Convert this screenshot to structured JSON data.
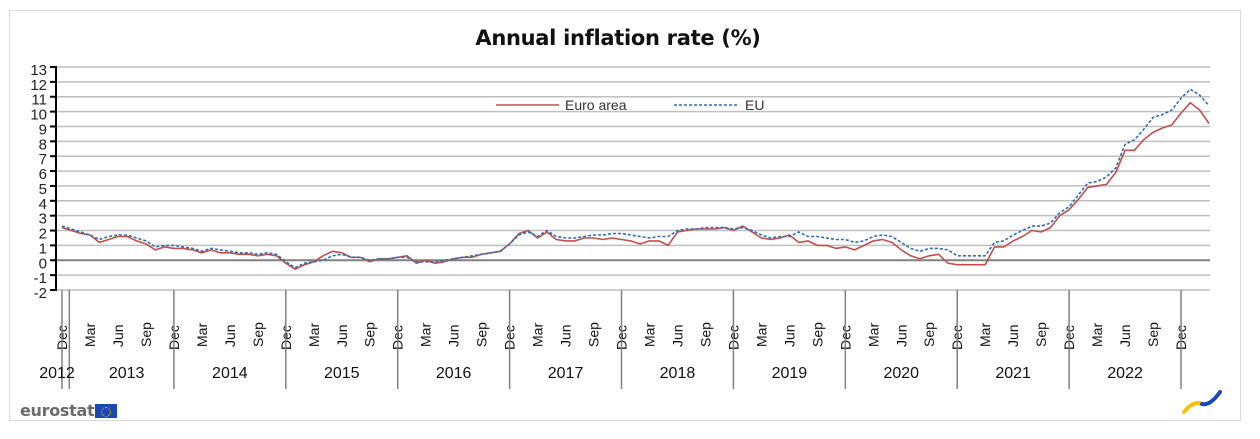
{
  "chart_data": {
    "type": "line",
    "title": "Annual inflation rate (%)",
    "xlabel": "",
    "ylabel": "",
    "ylim": [
      -2,
      13
    ],
    "yticks": [
      "-2",
      "-1",
      "0",
      "1",
      "2",
      "3",
      "4",
      "5",
      "6",
      "7",
      "8",
      "9",
      "10",
      "11",
      "12",
      "13"
    ],
    "grid": true,
    "legend": {
      "placement": "top-center",
      "entries": [
        {
          "name": "Euro area",
          "style": "solid",
          "color": "#c0504d"
        },
        {
          "name": "EU",
          "style": "dashed",
          "color": "#2e6db4"
        }
      ]
    },
    "x_start": "Dec 2012",
    "x_end": "Dec 2022",
    "x_month_ticks": [
      "Dec",
      "Mar",
      "Jun",
      "Sep",
      "Dec",
      "Mar",
      "Jun",
      "Sep",
      "Dec",
      "Mar",
      "Jun",
      "Sep",
      "Dec",
      "Mar",
      "Jun",
      "Sep",
      "Dec",
      "Mar",
      "Jun",
      "Sep",
      "Dec",
      "Mar",
      "Jun",
      "Sep",
      "Dec",
      "Mar",
      "Jun",
      "Sep",
      "Dec",
      "Mar",
      "Jun",
      "Sep",
      "Dec",
      "Mar",
      "Jun",
      "Sep",
      "Dec",
      "Mar",
      "Jun",
      "Sep",
      "Dec"
    ],
    "x_year_labels": [
      "2012",
      "2013",
      "2014",
      "2015",
      "2016",
      "2017",
      "2018",
      "2019",
      "2020",
      "2021",
      "2022"
    ],
    "series": [
      {
        "name": "Euro area",
        "values": [
          2.2,
          2.0,
          1.8,
          1.7,
          1.2,
          1.4,
          1.6,
          1.6,
          1.3,
          1.1,
          0.7,
          0.9,
          0.8,
          0.8,
          0.7,
          0.5,
          0.7,
          0.5,
          0.5,
          0.4,
          0.4,
          0.3,
          0.4,
          0.3,
          -0.2,
          -0.6,
          -0.3,
          -0.1,
          0.3,
          0.6,
          0.5,
          0.2,
          0.2,
          -0.1,
          0.1,
          0.1,
          0.2,
          0.3,
          -0.2,
          0.0,
          -0.2,
          -0.1,
          0.1,
          0.2,
          0.2,
          0.4,
          0.5,
          0.6,
          1.1,
          1.8,
          2.0,
          1.5,
          1.9,
          1.4,
          1.3,
          1.3,
          1.5,
          1.5,
          1.4,
          1.5,
          1.4,
          1.3,
          1.1,
          1.3,
          1.3,
          1.0,
          1.9,
          2.0,
          2.1,
          2.1,
          2.1,
          2.2,
          2.0,
          2.3,
          1.9,
          1.5,
          1.4,
          1.5,
          1.7,
          1.2,
          1.3,
          1.0,
          1.0,
          0.8,
          0.9,
          0.7,
          1.0,
          1.3,
          1.4,
          1.2,
          0.7,
          0.3,
          0.1,
          0.3,
          0.4,
          -0.2,
          -0.3,
          -0.3,
          -0.3,
          -0.3,
          0.9,
          0.9,
          1.3,
          1.6,
          2.0,
          1.9,
          2.2,
          3.0,
          3.4,
          4.1,
          4.9,
          5.0,
          5.1,
          5.9,
          7.4,
          7.4,
          8.1,
          8.6,
          8.9,
          9.1,
          9.9,
          10.6,
          10.1,
          9.2
        ]
      },
      {
        "name": "EU",
        "values": [
          2.3,
          2.1,
          1.9,
          1.7,
          1.4,
          1.6,
          1.7,
          1.7,
          1.5,
          1.3,
          0.9,
          1.0,
          1.0,
          0.9,
          0.8,
          0.6,
          0.8,
          0.7,
          0.6,
          0.5,
          0.5,
          0.4,
          0.5,
          0.4,
          -0.1,
          -0.5,
          -0.2,
          -0.1,
          0.0,
          0.3,
          0.4,
          0.2,
          0.2,
          0.0,
          0.1,
          0.1,
          0.2,
          0.2,
          -0.1,
          -0.1,
          -0.1,
          0.0,
          0.1,
          0.2,
          0.3,
          0.4,
          0.5,
          0.6,
          1.1,
          1.7,
          1.9,
          1.6,
          2.0,
          1.6,
          1.5,
          1.5,
          1.6,
          1.7,
          1.7,
          1.8,
          1.8,
          1.7,
          1.6,
          1.5,
          1.6,
          1.6,
          2.0,
          2.1,
          2.1,
          2.2,
          2.2,
          2.2,
          2.1,
          2.2,
          2.0,
          1.7,
          1.5,
          1.6,
          1.6,
          1.9,
          1.6,
          1.6,
          1.5,
          1.4,
          1.4,
          1.2,
          1.3,
          1.6,
          1.7,
          1.6,
          1.2,
          0.8,
          0.6,
          0.8,
          0.8,
          0.7,
          0.3,
          0.3,
          0.3,
          0.3,
          1.2,
          1.3,
          1.7,
          2.0,
          2.3,
          2.3,
          2.5,
          3.2,
          3.6,
          4.4,
          5.2,
          5.3,
          5.6,
          6.2,
          7.8,
          8.1,
          8.8,
          9.6,
          9.8,
          10.1,
          10.9,
          11.5,
          11.1,
          10.4
        ]
      }
    ]
  },
  "branding": {
    "logo_text": "eurostat",
    "flag_icon": "eu-flag-icon",
    "corner_icon": "chart-swoosh-icon",
    "accent_yellow": "#f5c400",
    "accent_blue": "#1a47b8"
  }
}
